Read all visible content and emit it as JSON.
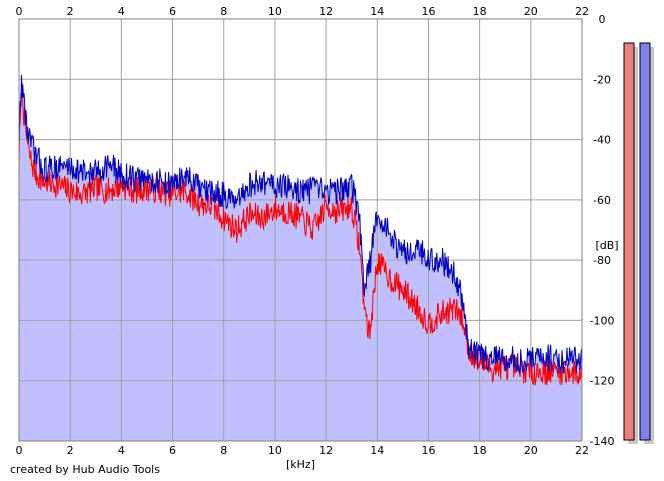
{
  "credit": "created by Hub Audio Tools",
  "colors": {
    "background": "#ffffff",
    "plot_border": "#808080",
    "grid": "#a0a0a0",
    "fill": "#c0c0ff",
    "series_a": "#ff0000",
    "series_b": "#0000c0",
    "meter_left": "#f08080",
    "meter_right": "#8080f0"
  },
  "chart_data": {
    "type": "line",
    "xlabel": "[kHz]",
    "ylabel": "[dB]",
    "xlim": [
      0,
      22
    ],
    "ylim": [
      -140,
      0
    ],
    "xticks": [
      "0",
      "2",
      "4",
      "6",
      "8",
      "10",
      "12",
      "14",
      "16",
      "18",
      "20",
      "22"
    ],
    "yticks": [
      "0",
      "-20",
      "-40",
      "-60",
      "-80",
      "-100",
      "-120",
      "-140"
    ],
    "grid": true,
    "x": [
      0.0,
      0.1,
      0.2,
      0.35,
      0.5,
      0.7,
      1.0,
      1.5,
      2.0,
      2.5,
      3.0,
      3.5,
      4.0,
      4.5,
      5.0,
      5.5,
      6.0,
      6.5,
      7.0,
      7.5,
      8.0,
      8.5,
      9.0,
      9.5,
      10.0,
      10.5,
      11.0,
      11.5,
      12.0,
      12.5,
      13.0,
      13.3,
      13.5,
      13.7,
      14.0,
      14.5,
      15.0,
      15.5,
      16.0,
      16.5,
      17.0,
      17.3,
      17.6,
      18.0,
      18.5,
      19.0,
      19.5,
      20.0,
      20.5,
      21.0,
      21.5,
      22.0
    ],
    "series": [
      {
        "values": [
          -46,
          -22,
          -32,
          -43,
          -48,
          -52,
          -54,
          -55,
          -57,
          -58,
          -56,
          -57,
          -55,
          -57,
          -56,
          -57,
          -58,
          -57,
          -61,
          -62,
          -66,
          -70,
          -65,
          -66,
          -63,
          -64,
          -66,
          -70,
          -62,
          -64,
          -62,
          -75,
          -96,
          -105,
          -80,
          -86,
          -90,
          -95,
          -101,
          -98,
          -96,
          -99,
          -110,
          -114,
          -116,
          -115,
          -116,
          -117,
          -117,
          -117,
          -117,
          -118
        ]
      },
      {
        "values": [
          -40,
          -20,
          -28,
          -38,
          -42,
          -46,
          -50,
          -49,
          -49,
          -51,
          -51,
          -48,
          -52,
          -53,
          -53,
          -54,
          -55,
          -52,
          -56,
          -58,
          -58,
          -62,
          -55,
          -54,
          -55,
          -56,
          -57,
          -57,
          -57,
          -57,
          -55,
          -66,
          -90,
          -82,
          -64,
          -72,
          -78,
          -75,
          -80,
          -80,
          -84,
          -92,
          -110,
          -112,
          -112,
          -113,
          -113,
          -113,
          -112,
          -113,
          -113,
          -113
        ]
      }
    ]
  },
  "meters": [
    {
      "level": 1.0
    },
    {
      "level": 1.0
    }
  ]
}
